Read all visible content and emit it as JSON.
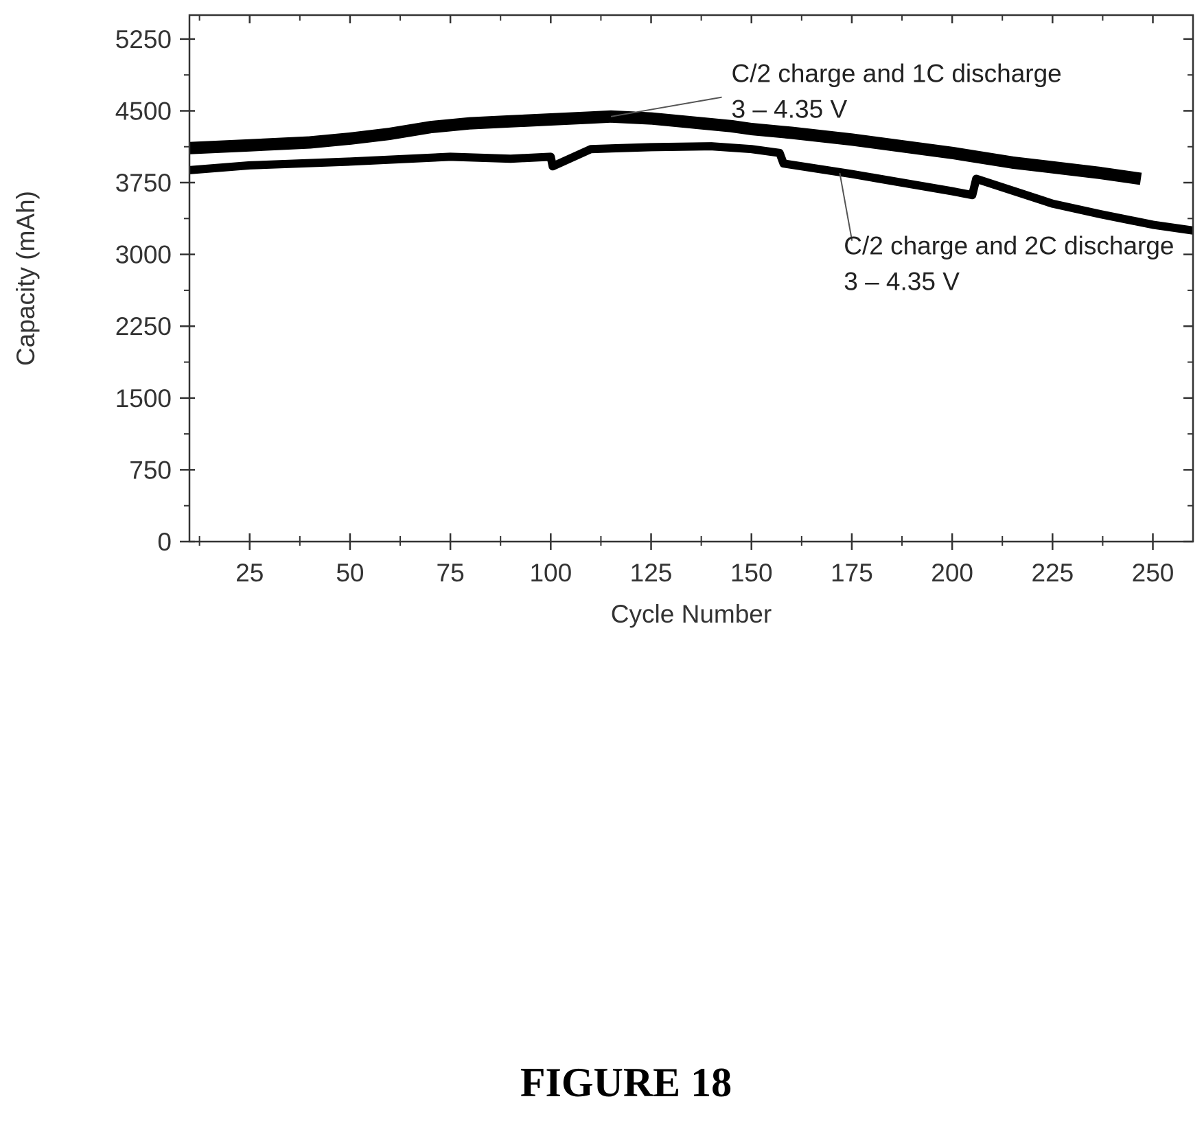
{
  "chart_data": {
    "type": "line",
    "xlabel": "Cycle Number",
    "ylabel": "Capacity (mAh)",
    "xlim": [
      10,
      260
    ],
    "ylim": [
      0,
      5500
    ],
    "xticks": [
      25,
      50,
      75,
      100,
      125,
      150,
      175,
      200,
      225,
      250
    ],
    "yticks": [
      0,
      750,
      1500,
      2250,
      3000,
      3750,
      4500,
      5250
    ],
    "grid": false,
    "series": [
      {
        "name": "C/2 charge and 1C discharge 3 – 4.35 V",
        "color": "#000000",
        "x": [
          10,
          25,
          40,
          50,
          60,
          70,
          80,
          90,
          100,
          110,
          115,
          125,
          135,
          145,
          150,
          160,
          175,
          200,
          215,
          225,
          237,
          247
        ],
        "y": [
          4110,
          4140,
          4170,
          4210,
          4260,
          4330,
          4370,
          4390,
          4410,
          4430,
          4440,
          4420,
          4380,
          4340,
          4310,
          4270,
          4200,
          4060,
          3960,
          3910,
          3850,
          3790
        ]
      },
      {
        "name": "C/2 charge and 2C discharge 3 – 4.35 V",
        "color": "#000000",
        "x": [
          10,
          25,
          50,
          75,
          90,
          100,
          100.5,
          110,
          125,
          140,
          150,
          157,
          158,
          175,
          200,
          205,
          206,
          225,
          237,
          250,
          260
        ],
        "y": [
          3880,
          3930,
          3970,
          4020,
          4000,
          4020,
          3920,
          4100,
          4120,
          4130,
          4100,
          4060,
          3950,
          3840,
          3660,
          3620,
          3790,
          3530,
          3420,
          3310,
          3250
        ]
      }
    ],
    "annotations": [
      {
        "lines": [
          "C/2 charge and 1C discharge",
          "3 – 4.35 V"
        ],
        "series": 0,
        "x": 145,
        "y": 4800,
        "point_x": 115,
        "point_y": 4440
      },
      {
        "lines": [
          "C/2 charge and 2C discharge",
          "3 – 4.35 V"
        ],
        "series": 1,
        "x": 173,
        "y": 3000,
        "point_x": 172,
        "point_y": 3850
      }
    ]
  },
  "caption": "FIGURE 18"
}
